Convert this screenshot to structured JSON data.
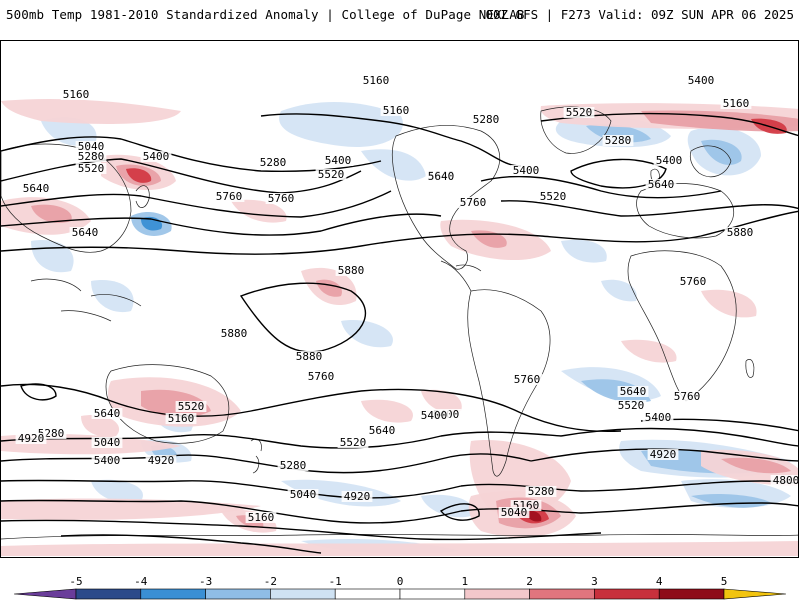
{
  "header": {
    "title_left": "500mb Temp 1981-2010 Standardized Anomaly | College of DuPage NEXLAB",
    "title_right": "00Z GFS | F273 Valid: 09Z SUN APR 06 2025"
  },
  "map": {
    "contour_labels": [
      "5160",
      "5160",
      "5040",
      "5280",
      "5520",
      "5400",
      "5640",
      "5280",
      "5400",
      "5520",
      "5640",
      "5160",
      "5280",
      "5400",
      "5640",
      "5760",
      "5520",
      "5400",
      "5280",
      "5520",
      "5160",
      "5400",
      "5640",
      "5760",
      "5880",
      "5760",
      "5640",
      "5880",
      "5880",
      "5880",
      "5760",
      "5760",
      "5760",
      "5640",
      "5520",
      "5160",
      "5280",
      "5040",
      "5400",
      "4920",
      "5400",
      "5640",
      "5520",
      "5280",
      "5040",
      "4920",
      "4920",
      "5160",
      "5640",
      "5520",
      "5400",
      "4920",
      "4800",
      "5760",
      "5400",
      "5280",
      "5160",
      "5040"
    ],
    "colors": {
      "warm_light": "#f6d4d6",
      "warm_mid": "#e8a0a6",
      "warm_strong": "#d33a45",
      "warm_extreme": "#a0101e",
      "cool_light": "#d4e4f4",
      "cool_mid": "#9cc4e8",
      "cool_strong": "#3a8fd4"
    }
  },
  "colorbar": {
    "ticks": [
      "-5",
      "-4",
      "-3",
      "-2",
      "-1",
      "0",
      "1",
      "2",
      "3",
      "4",
      "5"
    ],
    "colors": [
      "#6a3d9a",
      "#2b4a8a",
      "#3a8fd4",
      "#8fbde6",
      "#cfe2f3",
      "#ffffff",
      "#ffffff",
      "#f3c8cb",
      "#e0757e",
      "#c8303c",
      "#8e0c18",
      "#f2c40f"
    ]
  }
}
